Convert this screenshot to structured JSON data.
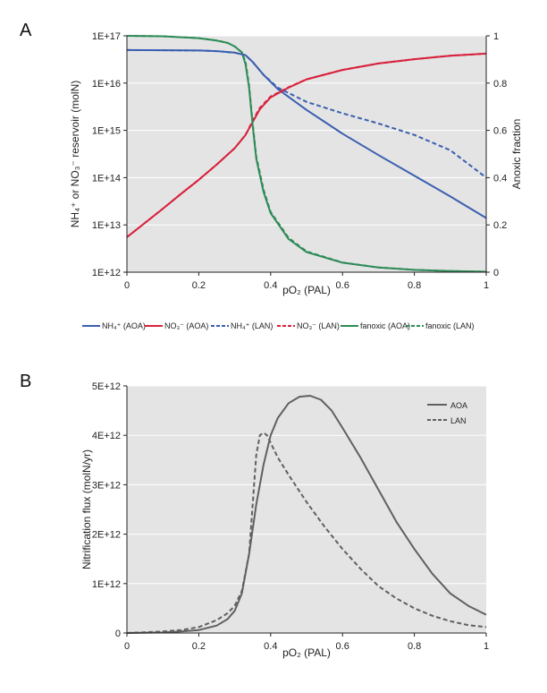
{
  "panels": [
    {
      "letter": "A",
      "chart_data": {
        "type": "line",
        "xlabel": "pO₂ (PAL)",
        "ylabel": "NH₄⁺ or NO₃⁻ reservoir (molN)",
        "y2label": "Anoxic fraction",
        "xlim": [
          0,
          1
        ],
        "ylim_log10": [
          12,
          17
        ],
        "y2lim": [
          0,
          1
        ],
        "y_scale": "log",
        "grid": "horizontal",
        "x_ticks": [
          "0",
          "0.2",
          "0.4",
          "0.6",
          "0.8",
          "1"
        ],
        "y_ticks": [
          "1E+12",
          "1E+13",
          "1E+14",
          "1E+15",
          "1E+16",
          "1E+17"
        ],
        "y2_ticks": [
          "0",
          "0.2",
          "0.4",
          "0.6",
          "0.8",
          "1"
        ],
        "legend_position": "bottom",
        "series": [
          {
            "name": "NH₄⁺ (AOA)",
            "axis": "left",
            "color": "#3a5fb0",
            "dash": "solid",
            "x": [
              0,
              0.1,
              0.2,
              0.25,
              0.3,
              0.33,
              0.35,
              0.38,
              0.42,
              0.5,
              0.6,
              0.7,
              0.8,
              0.9,
              1.0
            ],
            "y": [
              5e+16,
              4.95e+16,
              4.9e+16,
              4.75e+16,
              4.4e+16,
              3.9e+16,
              2.8e+16,
              1.5e+16,
              7500000000000000.0,
              2700000000000000.0,
              850000000000000.0,
              300000000000000.0,
              110000000000000.0,
              40000000000000.0,
              14000000000000.0
            ]
          },
          {
            "name": "NO₃⁻ (AOA)",
            "axis": "left",
            "color": "#d8213b",
            "dash": "solid",
            "x": [
              0,
              0.05,
              0.1,
              0.15,
              0.2,
              0.25,
              0.3,
              0.33,
              0.35,
              0.37,
              0.4,
              0.45,
              0.5,
              0.6,
              0.7,
              0.8,
              0.9,
              1.0
            ],
            "y": [
              5500000000000.0,
              11000000000000.0,
              22000000000000.0,
              45000000000000.0,
              90000000000000.0,
              190000000000000.0,
              420000000000000.0,
              800000000000000.0,
              1500000000000000.0,
              2800000000000000.0,
              5000000000000000.0,
              8000000000000000.0,
              1.2e+16,
              1.9e+16,
              2.6e+16,
              3.2e+16,
              3.8e+16,
              4.2e+16
            ]
          },
          {
            "name": "NH₄⁺ (LAN)",
            "axis": "left",
            "color": "#3a5fb0",
            "dash": "dashed",
            "x": [
              0,
              0.1,
              0.2,
              0.25,
              0.3,
              0.33,
              0.35,
              0.38,
              0.42,
              0.5,
              0.6,
              0.7,
              0.8,
              0.9,
              1.0
            ],
            "y": [
              5e+16,
              4.95e+16,
              4.9e+16,
              4.75e+16,
              4.4e+16,
              3.9e+16,
              2.8e+16,
              1.5e+16,
              8000000000000000.0,
              4000000000000000.0,
              2300000000000000.0,
              1400000000000000.0,
              800000000000000.0,
              380000000000000.0,
              100000000000000.0
            ]
          },
          {
            "name": "NO₃⁻ (LAN)",
            "axis": "left",
            "color": "#d8213b",
            "dash": "dashed",
            "x": [
              0,
              0.05,
              0.1,
              0.15,
              0.2,
              0.25,
              0.3,
              0.33,
              0.35,
              0.37,
              0.4,
              0.45,
              0.5,
              0.6,
              0.7,
              0.8,
              0.9,
              1.0
            ],
            "y": [
              5500000000000.0,
              11000000000000.0,
              22000000000000.0,
              45000000000000.0,
              90000000000000.0,
              190000000000000.0,
              420000000000000.0,
              800000000000000.0,
              1600000000000000.0,
              3000000000000000.0,
              5200000000000000.0,
              8200000000000000.0,
              1.2e+16,
              1.9e+16,
              2.6e+16,
              3.2e+16,
              3.8e+16,
              4.2e+16
            ]
          },
          {
            "name": "fanoxic (AOA)",
            "axis": "right",
            "color": "#2e8b57",
            "dash": "solid",
            "x": [
              0,
              0.1,
              0.2,
              0.25,
              0.28,
              0.3,
              0.32,
              0.33,
              0.34,
              0.35,
              0.36,
              0.38,
              0.4,
              0.45,
              0.5,
              0.6,
              0.7,
              0.8,
              0.9,
              1.0
            ],
            "y": [
              1.0,
              0.998,
              0.99,
              0.98,
              0.97,
              0.955,
              0.93,
              0.88,
              0.78,
              0.62,
              0.48,
              0.34,
              0.25,
              0.14,
              0.085,
              0.04,
              0.02,
              0.01,
              0.005,
              0.002
            ]
          },
          {
            "name": "fanoxic (LAN)",
            "axis": "right",
            "color": "#2e8b57",
            "dash": "dashed",
            "x": [
              0,
              0.1,
              0.2,
              0.25,
              0.28,
              0.3,
              0.32,
              0.33,
              0.34,
              0.35,
              0.36,
              0.38,
              0.4,
              0.45,
              0.5,
              0.6,
              0.7,
              0.8,
              0.9,
              1.0
            ],
            "y": [
              1.0,
              0.998,
              0.99,
              0.98,
              0.97,
              0.955,
              0.93,
              0.89,
              0.79,
              0.63,
              0.49,
              0.35,
              0.255,
              0.145,
              0.088,
              0.041,
              0.02,
              0.01,
              0.005,
              0.002
            ]
          }
        ]
      }
    },
    {
      "letter": "B",
      "chart_data": {
        "type": "line",
        "xlabel": "pO₂ (PAL)",
        "ylabel": "Nitrification flux (molN/yr)",
        "xlim": [
          0,
          1
        ],
        "ylim": [
          0,
          5000000000000.0
        ],
        "grid": "horizontal",
        "x_ticks": [
          "0",
          "0.2",
          "0.4",
          "0.6",
          "0.8",
          "1"
        ],
        "y_ticks": [
          "0",
          "1E+12",
          "2E+12",
          "3E+12",
          "4E+12",
          "5E+12"
        ],
        "legend_position": "top-right",
        "series": [
          {
            "name": "AOA",
            "color": "#606060",
            "dash": "solid",
            "x": [
              0,
              0.1,
              0.15,
              0.2,
              0.25,
              0.28,
              0.3,
              0.32,
              0.34,
              0.36,
              0.38,
              0.4,
              0.42,
              0.45,
              0.48,
              0.51,
              0.54,
              0.57,
              0.6,
              0.65,
              0.7,
              0.75,
              0.8,
              0.85,
              0.9,
              0.95,
              1.0
            ],
            "y": [
              0,
              10000000000.0,
              30000000000.0,
              60000000000.0,
              150000000000.0,
              280000000000.0,
              450000000000.0,
              800000000000.0,
              1600000000000.0,
              2600000000000.0,
              3400000000000.0,
              4000000000000.0,
              4350000000000.0,
              4650000000000.0,
              4780000000000.0,
              4800000000000.0,
              4720000000000.0,
              4500000000000.0,
              4150000000000.0,
              3550000000000.0,
              2900000000000.0,
              2250000000000.0,
              1700000000000.0,
              1200000000000.0,
              800000000000.0,
              550000000000.0,
              370000000000.0
            ]
          },
          {
            "name": "LAN",
            "color": "#606060",
            "dash": "dashed",
            "x": [
              0,
              0.1,
              0.15,
              0.2,
              0.25,
              0.28,
              0.3,
              0.32,
              0.34,
              0.35,
              0.36,
              0.37,
              0.38,
              0.39,
              0.4,
              0.42,
              0.45,
              0.5,
              0.55,
              0.6,
              0.65,
              0.7,
              0.75,
              0.8,
              0.85,
              0.9,
              0.95,
              1.0
            ],
            "y": [
              0,
              30000000000.0,
              60000000000.0,
              120000000000.0,
              260000000000.0,
              400000000000.0,
              550000000000.0,
              850000000000.0,
              1600000000000.0,
              2600000000000.0,
              3600000000000.0,
              4000000000000.0,
              4050000000000.0,
              4000000000000.0,
              3850000000000.0,
              3550000000000.0,
              3200000000000.0,
              2650000000000.0,
              2150000000000.0,
              1700000000000.0,
              1300000000000.0,
              950000000000.0,
              700000000000.0,
              500000000000.0,
              350000000000.0,
              240000000000.0,
              160000000000.0,
              120000000000.0
            ]
          }
        ]
      }
    }
  ],
  "colors": {
    "plot_bg": "#e4e4e4",
    "grid": "#ffffff",
    "axis": "#222222"
  }
}
